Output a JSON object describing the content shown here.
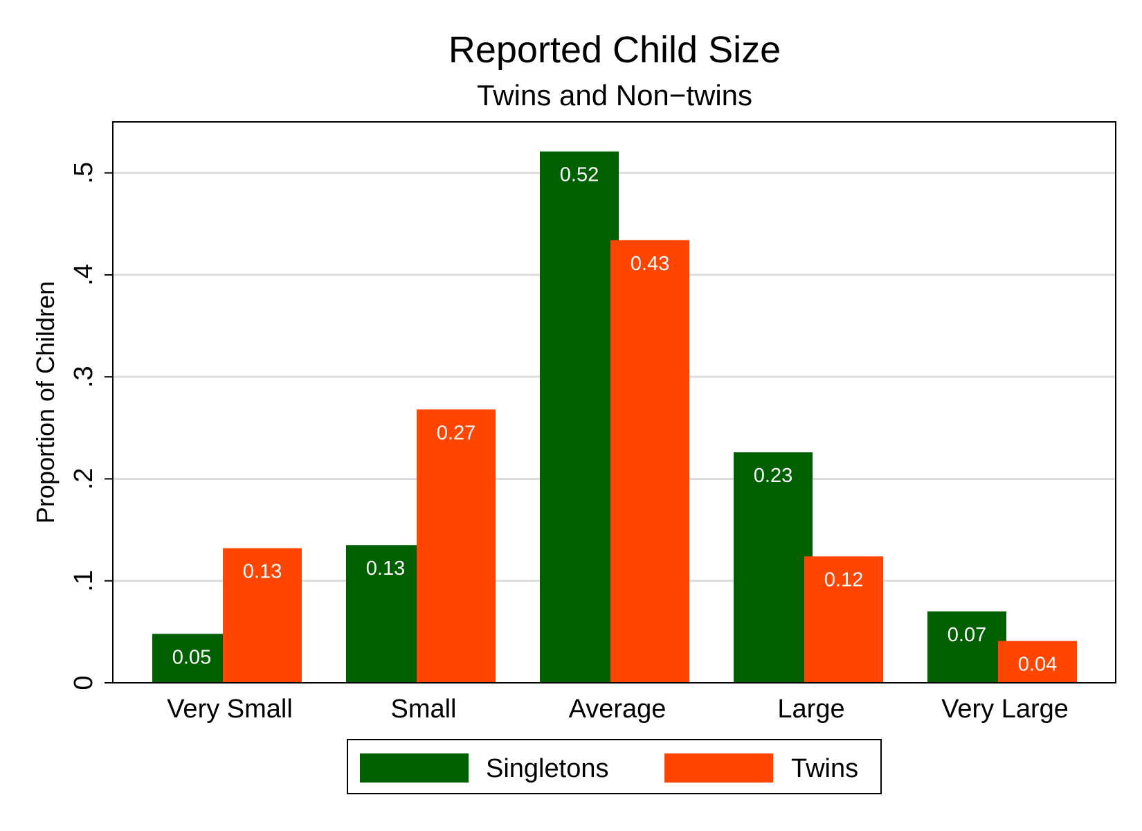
{
  "chart_data": {
    "type": "bar",
    "title": "Reported Child Size",
    "subtitle": "Twins and Non−twins",
    "xlabel": "",
    "ylabel": "Proportion of Children",
    "ylim": [
      0,
      0.55
    ],
    "yticks": [
      0,
      0.1,
      0.2,
      0.3,
      0.4,
      0.5
    ],
    "ytick_labels": [
      "0",
      ".1",
      ".2",
      ".3",
      ".4",
      ".5"
    ],
    "categories": [
      "Very Small",
      "Small",
      "Average",
      "Large",
      "Very Large"
    ],
    "series": [
      {
        "name": "Singletons",
        "color": "#005f00",
        "values": [
          0.048,
          0.135,
          0.521,
          0.226,
          0.07
        ],
        "labels": [
          "0.05",
          "0.13",
          "0.52",
          "0.23",
          "0.07"
        ]
      },
      {
        "name": "Twins",
        "color": "#ff4500",
        "values": [
          0.132,
          0.268,
          0.434,
          0.124,
          0.041
        ],
        "labels": [
          "0.13",
          "0.27",
          "0.43",
          "0.12",
          "0.04"
        ]
      }
    ],
    "grid": true,
    "legend_position": "bottom"
  }
}
